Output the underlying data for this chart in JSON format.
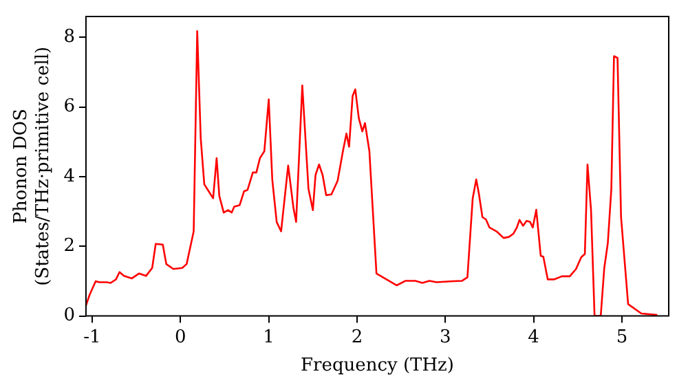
{
  "chart_data": {
    "type": "line",
    "xlabel": "Frequency (THz)",
    "ylabel": "Phonon DOS\n(States/THz·primitive cell)",
    "x": [
      -1.07,
      -1.03,
      -0.96,
      -0.92,
      -0.84,
      -0.79,
      -0.73,
      -0.69,
      -0.64,
      -0.55,
      -0.47,
      -0.39,
      -0.32,
      -0.28,
      -0.2,
      -0.16,
      -0.08,
      0.02,
      0.07,
      0.15,
      0.19,
      0.23,
      0.27,
      0.32,
      0.37,
      0.41,
      0.44,
      0.49,
      0.54,
      0.58,
      0.61,
      0.67,
      0.72,
      0.76,
      0.82,
      0.86,
      0.9,
      0.95,
      1.0,
      1.04,
      1.09,
      1.14,
      1.22,
      1.28,
      1.31,
      1.38,
      1.45,
      1.5,
      1.53,
      1.57,
      1.61,
      1.65,
      1.71,
      1.78,
      1.84,
      1.88,
      1.91,
      1.95,
      1.98,
      2.02,
      2.06,
      2.09,
      2.14,
      2.22,
      2.45,
      2.55,
      2.66,
      2.74,
      2.82,
      2.9,
      3.09,
      3.19,
      3.25,
      3.31,
      3.35,
      3.38,
      3.42,
      3.46,
      3.5,
      3.58,
      3.66,
      3.72,
      3.77,
      3.81,
      3.84,
      3.88,
      3.92,
      3.96,
      3.99,
      4.03,
      4.08,
      4.11,
      4.16,
      4.23,
      4.32,
      4.41,
      4.48,
      4.54,
      4.58,
      4.61,
      4.65,
      4.69,
      4.76,
      4.8,
      4.84,
      4.88,
      4.91,
      4.95,
      4.99,
      5.07,
      5.22,
      5.4
    ],
    "series": [
      {
        "color": "#ff0000",
        "values": [
          0.3,
          0.6,
          1.0,
          0.97,
          0.97,
          0.95,
          1.05,
          1.26,
          1.15,
          1.08,
          1.22,
          1.15,
          1.38,
          2.07,
          2.05,
          1.49,
          1.35,
          1.38,
          1.49,
          2.43,
          8.18,
          5.1,
          3.78,
          3.58,
          3.38,
          4.53,
          3.45,
          2.97,
          3.04,
          2.97,
          3.14,
          3.18,
          3.58,
          3.62,
          4.12,
          4.12,
          4.53,
          4.73,
          6.22,
          3.92,
          2.7,
          2.43,
          4.32,
          3.1,
          2.7,
          6.62,
          3.65,
          3.04,
          4.05,
          4.35,
          4.05,
          3.47,
          3.49,
          3.88,
          4.73,
          5.24,
          4.86,
          6.32,
          6.51,
          5.68,
          5.3,
          5.54,
          4.73,
          1.22,
          0.88,
          1.01,
          1.01,
          0.95,
          1.01,
          0.97,
          1.0,
          1.01,
          1.11,
          3.38,
          3.92,
          3.51,
          2.84,
          2.77,
          2.54,
          2.43,
          2.24,
          2.27,
          2.36,
          2.54,
          2.76,
          2.59,
          2.73,
          2.7,
          2.54,
          3.05,
          1.73,
          1.7,
          1.05,
          1.05,
          1.14,
          1.14,
          1.35,
          1.69,
          1.78,
          4.35,
          3.04,
          0,
          0,
          1.38,
          2.09,
          3.65,
          7.46,
          7.41,
          2.84,
          0.34,
          0.07,
          0.03
        ]
      }
    ],
    "xlim": [
      -1.07,
      5.53
    ],
    "ylim": [
      0,
      8.6
    ],
    "xticks": [
      -1,
      0,
      1,
      2,
      3,
      4,
      5
    ],
    "yticks": [
      0,
      2,
      4,
      6,
      8
    ],
    "grid": false,
    "legend": false,
    "marker": "none",
    "line_style": "solid"
  }
}
